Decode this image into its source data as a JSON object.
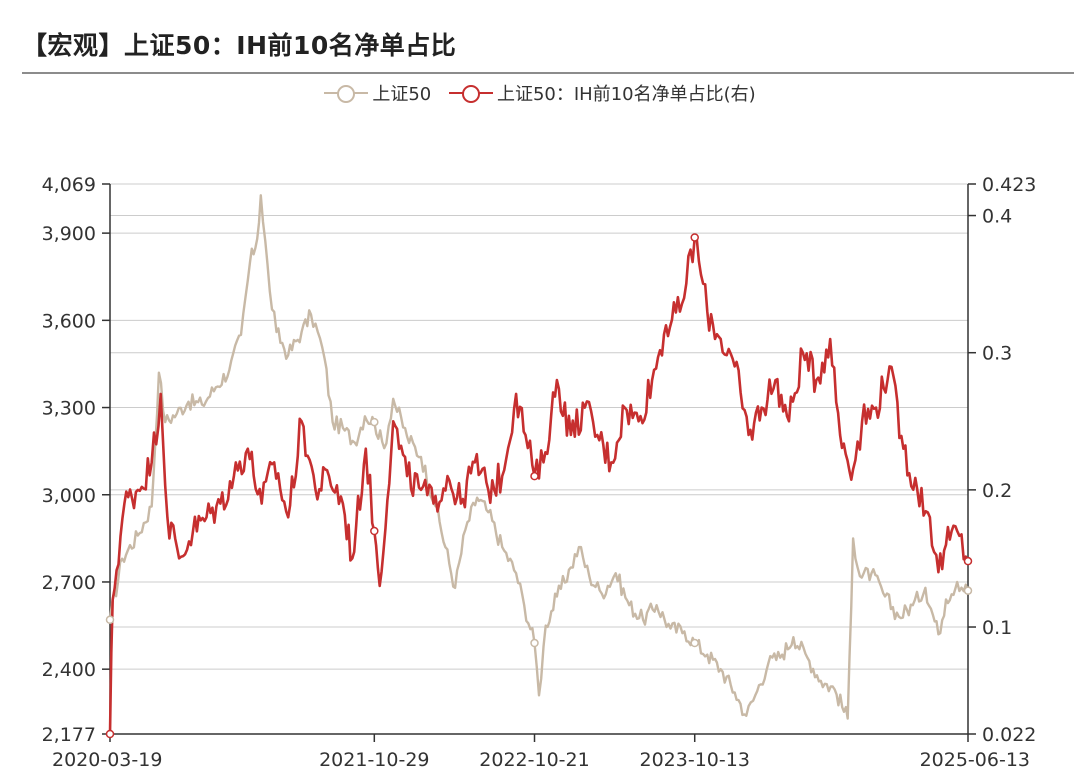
{
  "title": "【宏观】上证50：IH前10名净单占比",
  "colors": {
    "primary_series": "#c8b9a6",
    "secondary_series": "#c62f2f",
    "grid": "#d0d0d0",
    "axis": "#333333"
  },
  "chart_data": {
    "type": "line",
    "title": "【宏观】上证50：IH前10名净单占比",
    "legend_position": "top-center",
    "grid": true,
    "x_tick_labels": [
      "2020-03-19",
      "2021-10-29",
      "2022-10-21",
      "2023-10-13",
      "2025-06-13"
    ],
    "y_left": {
      "ylim": [
        2177,
        4069
      ],
      "ticks": [
        "2,177",
        "2,400",
        "2,700",
        "3,000",
        "3,300",
        "3,600",
        "3,900",
        "4,069"
      ]
    },
    "y_right": {
      "ylim": [
        0.022,
        0.423
      ],
      "ticks": [
        "0.022",
        "0.1",
        "0.2",
        "0.3",
        "0.4",
        "0.423"
      ]
    },
    "series": [
      {
        "name": "上证50",
        "axis": "left",
        "color": "#c8b9a6",
        "points": [
          [
            "2020-03-19",
            2570
          ],
          [
            "2020-04-15",
            2780
          ],
          [
            "2020-05-20",
            2860
          ],
          [
            "2020-06-20",
            2960
          ],
          [
            "2020-07-06",
            3420
          ],
          [
            "2020-07-20",
            3250
          ],
          [
            "2020-08-15",
            3280
          ],
          [
            "2020-09-10",
            3320
          ],
          [
            "2020-10-10",
            3310
          ],
          [
            "2020-11-10",
            3370
          ],
          [
            "2020-12-10",
            3430
          ],
          [
            "2021-01-05",
            3550
          ],
          [
            "2021-01-25",
            3800
          ],
          [
            "2021-02-10",
            3880
          ],
          [
            "2021-02-18",
            4030
          ],
          [
            "2021-03-10",
            3700
          ],
          [
            "2021-03-25",
            3560
          ],
          [
            "2021-04-20",
            3480
          ],
          [
            "2021-05-20",
            3560
          ],
          [
            "2021-06-10",
            3620
          ],
          [
            "2021-06-25",
            3560
          ],
          [
            "2021-07-10",
            3470
          ],
          [
            "2021-07-28",
            3250
          ],
          [
            "2021-08-20",
            3230
          ],
          [
            "2021-09-15",
            3180
          ],
          [
            "2021-10-08",
            3270
          ],
          [
            "2021-10-29",
            3250
          ],
          [
            "2021-11-20",
            3160
          ],
          [
            "2021-12-10",
            3330
          ],
          [
            "2022-01-10",
            3200
          ],
          [
            "2022-02-10",
            3130
          ],
          [
            "2022-03-15",
            2960
          ],
          [
            "2022-04-27",
            2680
          ],
          [
            "2022-05-20",
            2880
          ],
          [
            "2022-06-15",
            2990
          ],
          [
            "2022-07-10",
            2940
          ],
          [
            "2022-08-10",
            2820
          ],
          [
            "2022-09-10",
            2730
          ],
          [
            "2022-09-28",
            2620
          ],
          [
            "2022-10-21",
            2490
          ],
          [
            "2022-10-31",
            2310
          ],
          [
            "2022-11-15",
            2550
          ],
          [
            "2022-12-10",
            2650
          ],
          [
            "2023-01-10",
            2750
          ],
          [
            "2023-01-28",
            2820
          ],
          [
            "2023-02-20",
            2720
          ],
          [
            "2023-03-20",
            2660
          ],
          [
            "2023-04-20",
            2730
          ],
          [
            "2023-05-20",
            2620
          ],
          [
            "2023-06-20",
            2570
          ],
          [
            "2023-07-20",
            2620
          ],
          [
            "2023-08-20",
            2540
          ],
          [
            "2023-09-20",
            2530
          ],
          [
            "2023-10-13",
            2490
          ],
          [
            "2023-11-10",
            2450
          ],
          [
            "2023-12-10",
            2400
          ],
          [
            "2024-01-10",
            2320
          ],
          [
            "2024-02-05",
            2240
          ],
          [
            "2024-02-25",
            2310
          ],
          [
            "2024-03-25",
            2420
          ],
          [
            "2024-04-25",
            2450
          ],
          [
            "2024-05-20",
            2510
          ],
          [
            "2024-06-20",
            2440
          ],
          [
            "2024-07-20",
            2360
          ],
          [
            "2024-08-20",
            2330
          ],
          [
            "2024-09-18",
            2230
          ],
          [
            "2024-09-30",
            2850
          ],
          [
            "2024-10-15",
            2720
          ],
          [
            "2024-11-10",
            2730
          ],
          [
            "2024-12-10",
            2650
          ],
          [
            "2025-01-10",
            2580
          ],
          [
            "2025-02-10",
            2620
          ],
          [
            "2025-03-10",
            2680
          ],
          [
            "2025-04-08",
            2520
          ],
          [
            "2025-04-25",
            2640
          ],
          [
            "2025-05-20",
            2700
          ],
          [
            "2025-06-13",
            2670
          ]
        ]
      },
      {
        "name": "上证50：IH前10名净单占比(右)",
        "axis": "right",
        "color": "#c62f2f",
        "points": [
          [
            "2020-03-19",
            0.022
          ],
          [
            "2020-03-25",
            0.12
          ],
          [
            "2020-04-20",
            0.19
          ],
          [
            "2020-05-20",
            0.2
          ],
          [
            "2020-06-20",
            0.22
          ],
          [
            "2020-07-10",
            0.27
          ],
          [
            "2020-07-25",
            0.18
          ],
          [
            "2020-08-20",
            0.15
          ],
          [
            "2020-09-20",
            0.17
          ],
          [
            "2020-10-20",
            0.18
          ],
          [
            "2020-11-20",
            0.19
          ],
          [
            "2020-12-20",
            0.21
          ],
          [
            "2021-01-20",
            0.23
          ],
          [
            "2021-02-20",
            0.19
          ],
          [
            "2021-03-20",
            0.22
          ],
          [
            "2021-04-20",
            0.18
          ],
          [
            "2021-05-20",
            0.25
          ],
          [
            "2021-06-20",
            0.2
          ],
          [
            "2021-07-20",
            0.21
          ],
          [
            "2021-08-20",
            0.19
          ],
          [
            "2021-09-10",
            0.15
          ],
          [
            "2021-10-10",
            0.23
          ],
          [
            "2021-10-29",
            0.17
          ],
          [
            "2021-11-10",
            0.13
          ],
          [
            "2021-12-10",
            0.25
          ],
          [
            "2022-01-10",
            0.21
          ],
          [
            "2022-02-10",
            0.2
          ],
          [
            "2022-03-10",
            0.19
          ],
          [
            "2022-04-10",
            0.21
          ],
          [
            "2022-05-10",
            0.19
          ],
          [
            "2022-06-10",
            0.22
          ],
          [
            "2022-07-10",
            0.2
          ],
          [
            "2022-08-10",
            0.21
          ],
          [
            "2022-09-10",
            0.27
          ],
          [
            "2022-10-01",
            0.24
          ],
          [
            "2022-10-21",
            0.21
          ],
          [
            "2022-11-10",
            0.22
          ],
          [
            "2022-12-10",
            0.28
          ],
          [
            "2023-01-10",
            0.24
          ],
          [
            "2023-02-10",
            0.26
          ],
          [
            "2023-03-10",
            0.24
          ],
          [
            "2023-04-10",
            0.22
          ],
          [
            "2023-05-10",
            0.26
          ],
          [
            "2023-06-10",
            0.25
          ],
          [
            "2023-07-10",
            0.28
          ],
          [
            "2023-08-10",
            0.32
          ],
          [
            "2023-09-10",
            0.33
          ],
          [
            "2023-10-13",
            0.384
          ],
          [
            "2023-11-10",
            0.33
          ],
          [
            "2023-12-10",
            0.31
          ],
          [
            "2024-01-10",
            0.29
          ],
          [
            "2024-02-10",
            0.24
          ],
          [
            "2024-03-10",
            0.26
          ],
          [
            "2024-04-10",
            0.28
          ],
          [
            "2024-05-10",
            0.25
          ],
          [
            "2024-06-10",
            0.3
          ],
          [
            "2024-07-10",
            0.28
          ],
          [
            "2024-08-10",
            0.31
          ],
          [
            "2024-09-01",
            0.24
          ],
          [
            "2024-09-30",
            0.215
          ],
          [
            "2024-10-20",
            0.25
          ],
          [
            "2024-11-20",
            0.26
          ],
          [
            "2024-12-20",
            0.29
          ],
          [
            "2025-01-20",
            0.23
          ],
          [
            "2025-02-20",
            0.2
          ],
          [
            "2025-03-20",
            0.18
          ],
          [
            "2025-04-08",
            0.14
          ],
          [
            "2025-04-25",
            0.16
          ],
          [
            "2025-05-20",
            0.17
          ],
          [
            "2025-06-13",
            0.148
          ]
        ]
      }
    ]
  }
}
